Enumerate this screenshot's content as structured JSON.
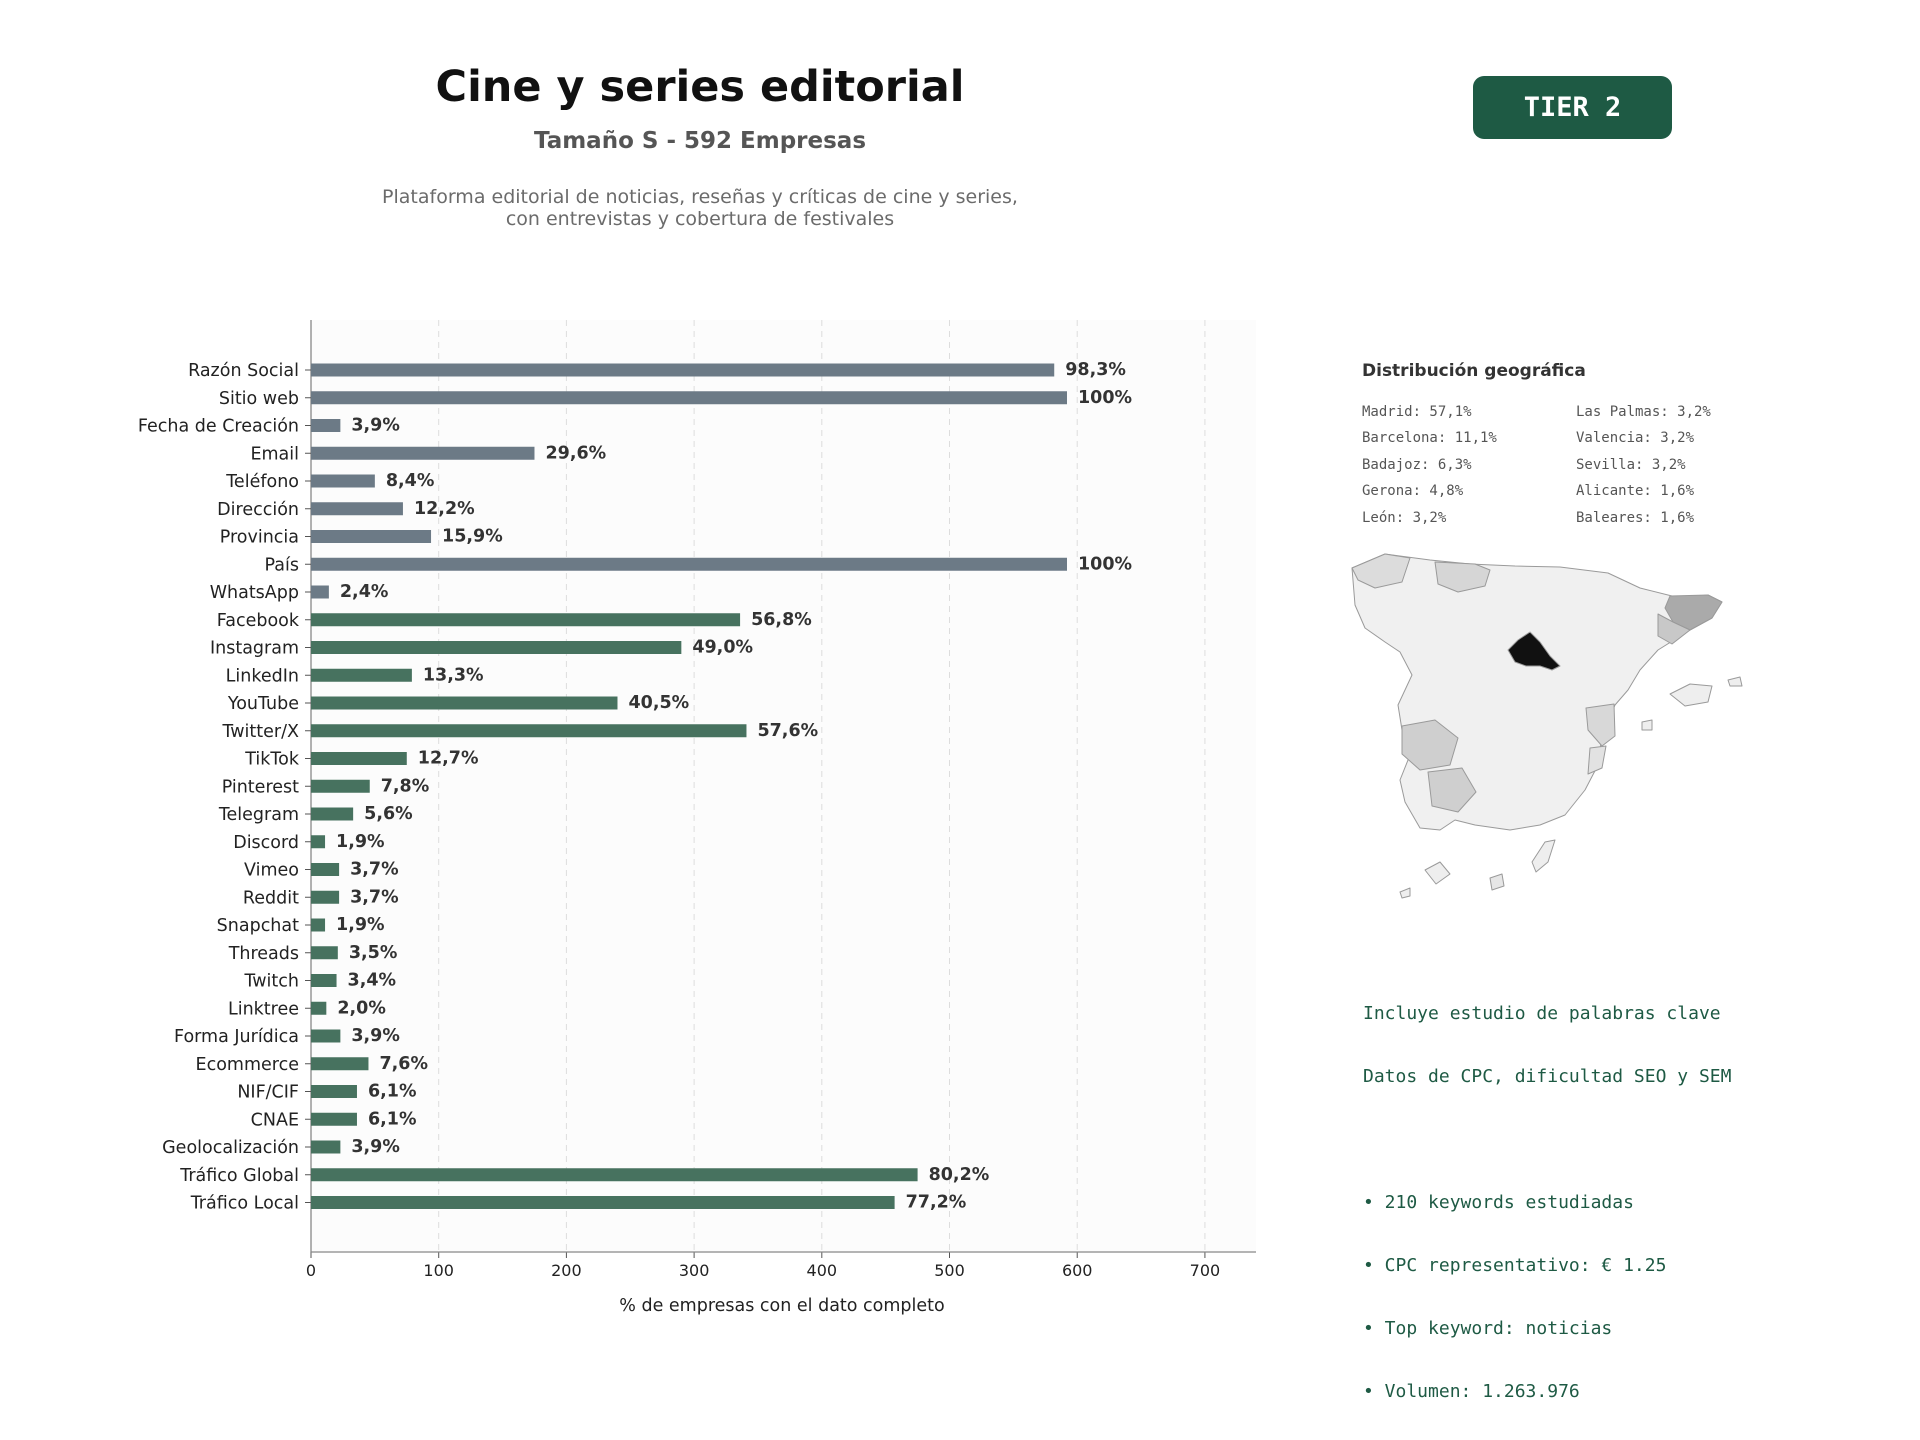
{
  "header": {
    "title": "Cine y series editorial",
    "subtitle": "Tamaño S - 592 Empresas",
    "description_lines": [
      "Plataforma editorial de noticias, reseñas y críticas de cine y series,",
      "con entrevistas y cobertura de festivales"
    ],
    "badge": "TIER 2"
  },
  "colors": {
    "contact_bar": "#6c7a86",
    "social_bar": "#47725f",
    "badge": "#1e5a44",
    "highlight_region": "#111111"
  },
  "chart_data": {
    "type": "bar",
    "orientation": "horizontal",
    "categories": [
      "Razón Social",
      "Sitio web",
      "Fecha de Creación",
      "Email",
      "Teléfono",
      "Dirección",
      "Provincia",
      "País",
      "WhatsApp",
      "Facebook",
      "Instagram",
      "LinkedIn",
      "YouTube",
      "Twitter/X",
      "TikTok",
      "Pinterest",
      "Telegram",
      "Discord",
      "Vimeo",
      "Reddit",
      "Snapchat",
      "Threads",
      "Twitch",
      "Linktree",
      "Forma Jurídica",
      "Ecommerce",
      "NIF/CIF",
      "CNAE",
      "Geolocalización",
      "Tráfico Global",
      "Tráfico Local"
    ],
    "values": [
      582,
      592,
      23,
      175,
      50,
      72,
      94,
      592,
      14,
      336,
      290,
      79,
      240,
      341,
      75,
      46,
      33,
      11,
      22,
      22,
      11,
      21,
      20,
      12,
      23,
      45,
      36,
      36,
      23,
      475,
      457
    ],
    "labels": [
      "98,3%",
      "100%",
      "3,9%",
      "29,6%",
      "8,4%",
      "12,2%",
      "15,9%",
      "100%",
      "2,4%",
      "56,8%",
      "49,0%",
      "13,3%",
      "40,5%",
      "57,6%",
      "12,7%",
      "7,8%",
      "5,6%",
      "1,9%",
      "3,7%",
      "3,7%",
      "1,9%",
      "3,5%",
      "3,4%",
      "2,0%",
      "3,9%",
      "7,6%",
      "6,1%",
      "6,1%",
      "3,9%",
      "80,2%",
      "77,2%"
    ],
    "groups": [
      "contact",
      "contact",
      "contact",
      "contact",
      "contact",
      "contact",
      "contact",
      "contact",
      "contact",
      "social",
      "social",
      "social",
      "social",
      "social",
      "social",
      "social",
      "social",
      "social",
      "social",
      "social",
      "social",
      "social",
      "social",
      "social",
      "social",
      "social",
      "social",
      "social",
      "social",
      "social",
      "social"
    ],
    "xlabel": "% de empresas con el dato completo",
    "xlim": [
      0,
      740
    ],
    "xticks": [
      0,
      100,
      200,
      300,
      400,
      500,
      600,
      700
    ],
    "grid": "vertical dashed"
  },
  "geo": {
    "title": "Distribución geográfica",
    "left": [
      "Madrid: 57,1%",
      "Barcelona: 11,1%",
      "Badajoz: 6,3%",
      "Gerona: 4,8%",
      "León: 3,2%"
    ],
    "right": [
      "Las Palmas: 3,2%",
      "Valencia: 3,2%",
      "Sevilla: 3,2%",
      "Alicante: 1,6%",
      "Baleares: 1,6%"
    ]
  },
  "seo": {
    "intro": [
      "Incluye estudio de palabras clave",
      "Datos de CPC, dificultad SEO y SEM"
    ],
    "bullets": [
      "• 210 keywords estudiadas",
      "• CPC representativo: € 1.25",
      "• Top keyword: noticias",
      "• Volumen: 1.263.976"
    ]
  }
}
